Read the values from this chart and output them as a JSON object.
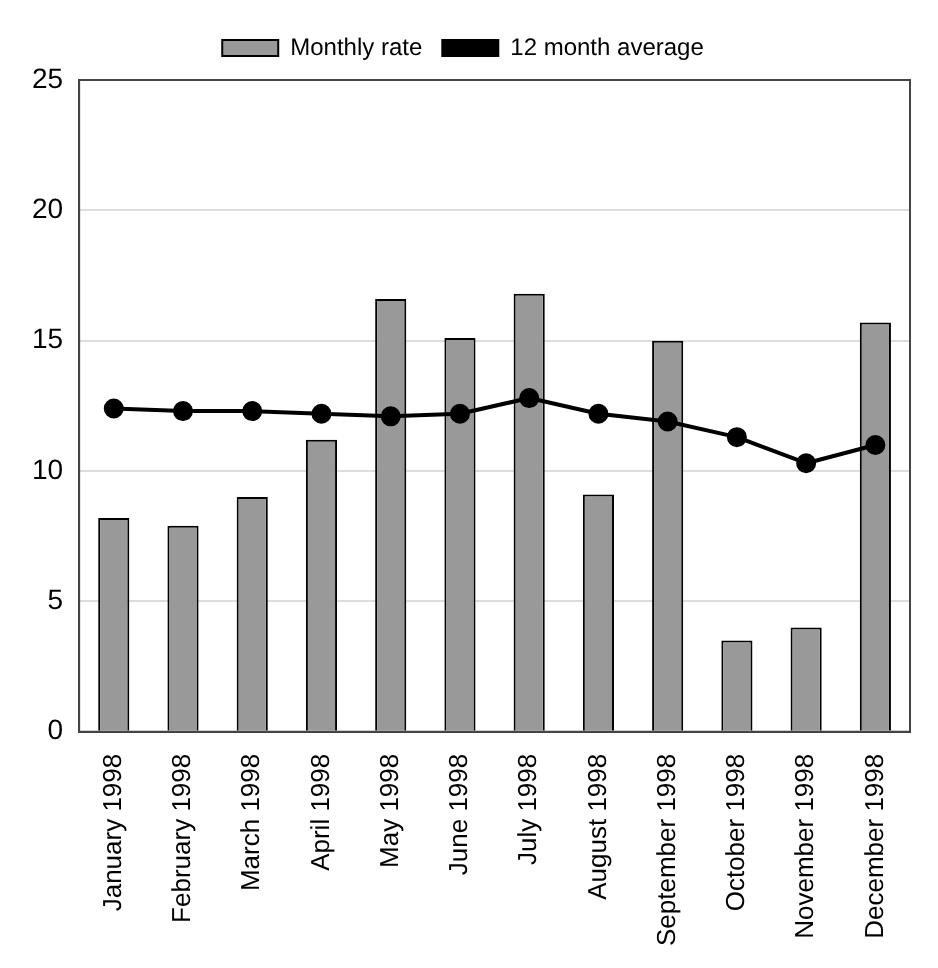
{
  "chart_data": {
    "type": "bar",
    "categories": [
      "January 1998",
      "February 1998",
      "March 1998",
      "April 1998",
      "May 1998",
      "June 1998",
      "July 1998",
      "August 1998",
      "September 1998",
      "October 1998",
      "November 1998",
      "December 1998"
    ],
    "series": [
      {
        "name": "Monthly rate",
        "color": "#999999",
        "values": [
          8.2,
          7.9,
          9.0,
          11.2,
          16.6,
          15.1,
          16.8,
          9.1,
          15.0,
          3.5,
          4.0,
          15.7
        ]
      },
      {
        "name": "12 month average",
        "type": "line",
        "color": "#000000",
        "values": [
          12.4,
          12.3,
          12.3,
          12.2,
          12.1,
          12.2,
          12.8,
          12.2,
          11.9,
          11.3,
          10.3,
          11.0
        ]
      }
    ],
    "ylim": [
      0,
      25
    ],
    "yticks": [
      0,
      5,
      10,
      15,
      20,
      25
    ],
    "grid": "y",
    "legend": "top",
    "marker": "circle",
    "line_style": "solid"
  }
}
